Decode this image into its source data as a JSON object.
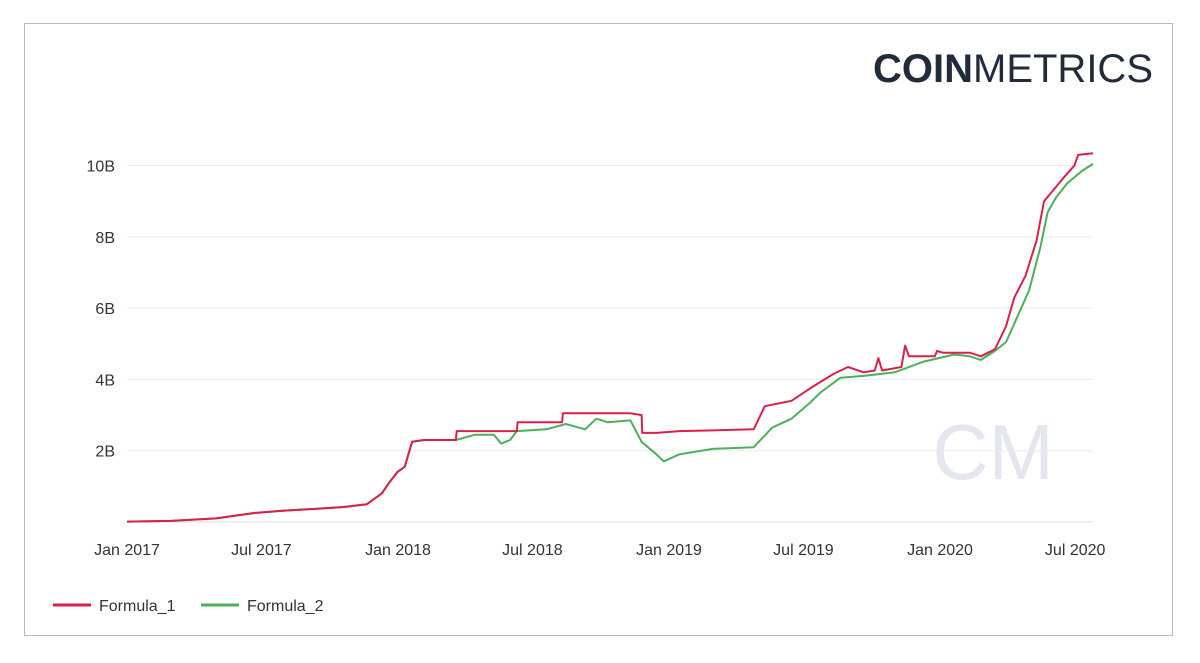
{
  "brand": {
    "bold": "COIN",
    "light": "METRICS",
    "watermark": "CM"
  },
  "chart_data": {
    "type": "line",
    "title": "",
    "xlabel": "",
    "ylabel": "",
    "x_ticks": [
      {
        "date": "2017-01-01",
        "label": "Jan 2017"
      },
      {
        "date": "2017-07-01",
        "label": "Jul 2017"
      },
      {
        "date": "2018-01-01",
        "label": "Jan 2018"
      },
      {
        "date": "2018-07-01",
        "label": "Jul 2018"
      },
      {
        "date": "2019-01-01",
        "label": "Jan 2019"
      },
      {
        "date": "2019-07-01",
        "label": "Jul 2019"
      },
      {
        "date": "2020-01-01",
        "label": "Jan 2020"
      },
      {
        "date": "2020-07-01",
        "label": "Jul 2020"
      }
    ],
    "y_ticks": [
      {
        "value": 2000000000,
        "label": "2B"
      },
      {
        "value": 4000000000,
        "label": "4B"
      },
      {
        "value": 6000000000,
        "label": "6B"
      },
      {
        "value": 8000000000,
        "label": "8B"
      },
      {
        "value": 10000000000,
        "label": "10B"
      }
    ],
    "xlim": [
      "2017-01-01",
      "2020-07-25"
    ],
    "ylim": [
      0,
      11000000000
    ],
    "grid": "horizontal",
    "legend_position": "bottom-left",
    "series": [
      {
        "name": "Formula_1",
        "color": "#dc1f4a",
        "points": [
          [
            "2017-01-01",
            10000000
          ],
          [
            "2017-03-01",
            30000000
          ],
          [
            "2017-05-01",
            100000000
          ],
          [
            "2017-06-20",
            250000000
          ],
          [
            "2017-08-01",
            320000000
          ],
          [
            "2017-09-20",
            380000000
          ],
          [
            "2017-10-20",
            420000000
          ],
          [
            "2017-11-20",
            500000000
          ],
          [
            "2017-12-10",
            800000000
          ],
          [
            "2017-12-20",
            1100000000
          ],
          [
            "2017-12-31",
            1400000000
          ],
          [
            "2018-01-10",
            1550000000
          ],
          [
            "2018-01-20",
            2250000000
          ],
          [
            "2018-02-05",
            2300000000
          ],
          [
            "2018-03-20",
            2300000000
          ],
          [
            "2018-03-21",
            2550000000
          ],
          [
            "2018-06-10",
            2550000000
          ],
          [
            "2018-06-11",
            2800000000
          ],
          [
            "2018-08-10",
            2800000000
          ],
          [
            "2018-08-11",
            3050000000
          ],
          [
            "2018-11-10",
            3050000000
          ],
          [
            "2018-11-25",
            3000000000
          ],
          [
            "2018-11-26",
            2500000000
          ],
          [
            "2018-12-15",
            2500000000
          ],
          [
            "2019-01-15",
            2550000000
          ],
          [
            "2019-03-01",
            2570000000
          ],
          [
            "2019-04-25",
            2600000000
          ],
          [
            "2019-05-10",
            3250000000
          ],
          [
            "2019-06-15",
            3400000000
          ],
          [
            "2019-07-10",
            3750000000
          ],
          [
            "2019-08-10",
            4150000000
          ],
          [
            "2019-08-30",
            4350000000
          ],
          [
            "2019-09-20",
            4200000000
          ],
          [
            "2019-10-05",
            4250000000
          ],
          [
            "2019-10-10",
            4600000000
          ],
          [
            "2019-10-15",
            4250000000
          ],
          [
            "2019-11-10",
            4350000000
          ],
          [
            "2019-11-15",
            4950000000
          ],
          [
            "2019-11-20",
            4650000000
          ],
          [
            "2019-12-25",
            4650000000
          ],
          [
            "2019-12-28",
            4800000000
          ],
          [
            "2020-01-05",
            4750000000
          ],
          [
            "2020-02-10",
            4750000000
          ],
          [
            "2020-02-25",
            4650000000
          ],
          [
            "2020-03-15",
            4850000000
          ],
          [
            "2020-03-30",
            5500000000
          ],
          [
            "2020-04-10",
            6300000000
          ],
          [
            "2020-04-25",
            6900000000
          ],
          [
            "2020-05-10",
            7900000000
          ],
          [
            "2020-05-20",
            9000000000
          ],
          [
            "2020-06-01",
            9300000000
          ],
          [
            "2020-06-15",
            9650000000
          ],
          [
            "2020-06-30",
            10000000000
          ],
          [
            "2020-07-05",
            10300000000
          ],
          [
            "2020-07-25",
            10350000000
          ]
        ]
      },
      {
        "name": "Formula_2",
        "color": "#4caf5a",
        "points": [
          [
            "2017-01-01",
            10000000
          ],
          [
            "2017-03-01",
            30000000
          ],
          [
            "2017-05-01",
            100000000
          ],
          [
            "2017-06-20",
            250000000
          ],
          [
            "2017-08-01",
            320000000
          ],
          [
            "2017-09-20",
            380000000
          ],
          [
            "2017-10-20",
            420000000
          ],
          [
            "2017-11-20",
            500000000
          ],
          [
            "2017-12-10",
            800000000
          ],
          [
            "2017-12-20",
            1100000000
          ],
          [
            "2017-12-31",
            1400000000
          ],
          [
            "2018-01-10",
            1550000000
          ],
          [
            "2018-01-20",
            2250000000
          ],
          [
            "2018-02-05",
            2300000000
          ],
          [
            "2018-03-20",
            2300000000
          ],
          [
            "2018-04-15",
            2450000000
          ],
          [
            "2018-05-10",
            2450000000
          ],
          [
            "2018-05-20",
            2200000000
          ],
          [
            "2018-06-01",
            2300000000
          ],
          [
            "2018-06-10",
            2550000000
          ],
          [
            "2018-07-20",
            2600000000
          ],
          [
            "2018-08-15",
            2750000000
          ],
          [
            "2018-09-10",
            2600000000
          ],
          [
            "2018-09-25",
            2900000000
          ],
          [
            "2018-10-10",
            2800000000
          ],
          [
            "2018-11-10",
            2850000000
          ],
          [
            "2018-11-25",
            2250000000
          ],
          [
            "2018-12-15",
            1900000000
          ],
          [
            "2018-12-25",
            1700000000
          ],
          [
            "2019-01-15",
            1900000000
          ],
          [
            "2019-03-01",
            2050000000
          ],
          [
            "2019-04-25",
            2100000000
          ],
          [
            "2019-05-20",
            2650000000
          ],
          [
            "2019-06-15",
            2900000000
          ],
          [
            "2019-07-10",
            3350000000
          ],
          [
            "2019-07-25",
            3650000000
          ],
          [
            "2019-08-20",
            4050000000
          ],
          [
            "2019-09-20",
            4100000000
          ],
          [
            "2019-11-01",
            4200000000
          ],
          [
            "2019-12-10",
            4500000000
          ],
          [
            "2020-01-20",
            4700000000
          ],
          [
            "2020-02-10",
            4650000000
          ],
          [
            "2020-02-25",
            4550000000
          ],
          [
            "2020-03-15",
            4800000000
          ],
          [
            "2020-03-30",
            5050000000
          ],
          [
            "2020-04-15",
            5800000000
          ],
          [
            "2020-04-30",
            6500000000
          ],
          [
            "2020-05-15",
            7700000000
          ],
          [
            "2020-05-25",
            8700000000
          ],
          [
            "2020-06-05",
            9100000000
          ],
          [
            "2020-06-20",
            9500000000
          ],
          [
            "2020-07-10",
            9850000000
          ],
          [
            "2020-07-25",
            10050000000
          ]
        ]
      }
    ]
  }
}
